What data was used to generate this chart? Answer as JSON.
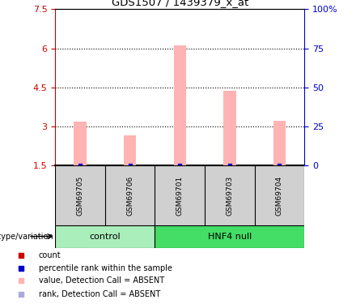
{
  "title": "GDS1507 / 1439379_x_at",
  "samples": [
    "GSM69705",
    "GSM69706",
    "GSM69701",
    "GSM69703",
    "GSM69704"
  ],
  "bar_values": [
    3.2,
    2.65,
    6.12,
    4.38,
    3.22
  ],
  "bar_color": "#ffb3b3",
  "left_yticks": [
    1.5,
    3.0,
    4.5,
    6.0,
    7.5
  ],
  "left_yticklabels": [
    "1.5",
    "3",
    "4.5",
    "6",
    "7.5"
  ],
  "right_yticks": [
    1.5,
    3.0,
    4.5,
    6.0,
    7.5
  ],
  "right_yticklabels": [
    "0",
    "25",
    "50",
    "75",
    "100%"
  ],
  "ylim": [
    1.5,
    7.5
  ],
  "dotted_lines": [
    3.0,
    4.5,
    6.0
  ],
  "group_labels": [
    "control",
    "HNF4 null"
  ],
  "genotype_label": "genotype/variation",
  "legend_items": [
    {
      "color": "#cc0000",
      "label": "count"
    },
    {
      "color": "#0000cc",
      "label": "percentile rank within the sample"
    },
    {
      "color": "#ffb3b3",
      "label": "value, Detection Call = ABSENT"
    },
    {
      "color": "#aaaadd",
      "label": "rank, Detection Call = ABSENT"
    }
  ],
  "left_tick_color": "#cc0000",
  "right_tick_color": "#0000cc",
  "bar_bottom": 1.5,
  "sample_area_color": "#d0d0d0",
  "control_color": "#aaeebb",
  "hnf4_color": "#44dd66",
  "bar_width": 0.25
}
